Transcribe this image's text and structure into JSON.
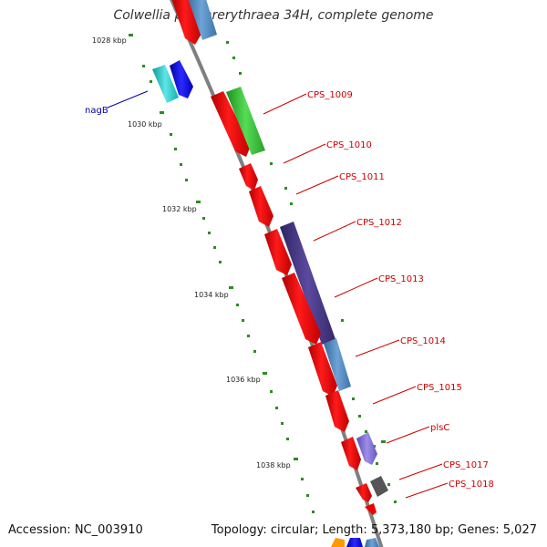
{
  "title": "Colwellia psychrerythraea 34H, complete genome",
  "accession": "Accession: NC_003910",
  "topology": "Topology: circular; Length: 5,373,180 bp; Genes: 5,027",
  "colors": {
    "backbone": "#7f7f7f",
    "tick": "#2e8b22",
    "cds_red": "#ff0000",
    "green": "#33cc33",
    "cyan": "#22c4c4",
    "blue": "#0000e0",
    "steelblue": "#4f88c0",
    "purple": "#4b3b8c",
    "violet": "#7b6ad0",
    "dark": "#555555",
    "orange": "#ff9900",
    "label_red": "#cc0000",
    "label_blue": "#0000aa"
  },
  "scale_labels": [
    "1028 kbp",
    "1030 kbp",
    "1032 kbp",
    "1034 kbp",
    "1036 kbp",
    "1038 kbp"
  ],
  "gene_labels": [
    "nagB",
    "CPS_1009",
    "CPS_1010",
    "CPS_1011",
    "CPS_1012",
    "CPS_1013",
    "CPS_1014",
    "CPS_1015",
    "plsC",
    "CPS_1017",
    "CPS_1018"
  ]
}
